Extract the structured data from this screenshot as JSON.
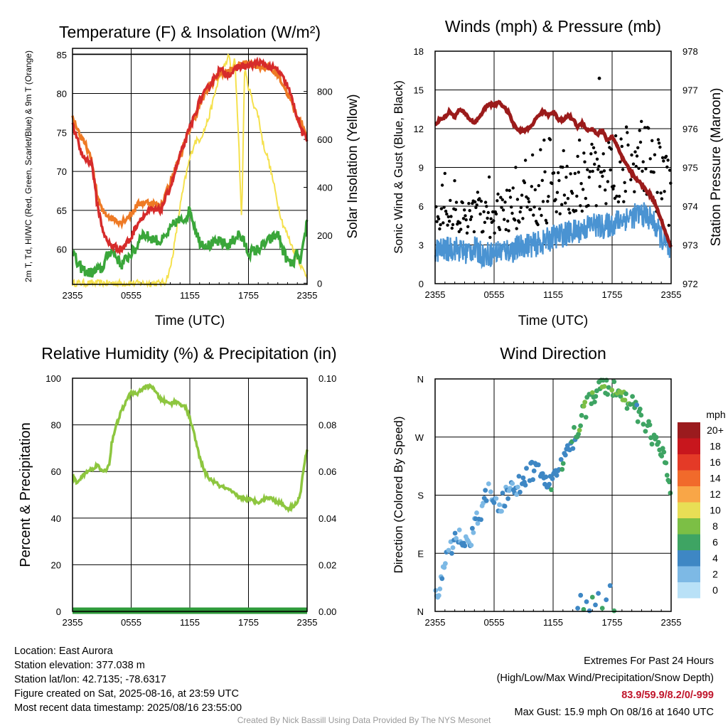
{
  "chart_data": [
    {
      "type": "line",
      "title": "Temperature (F) & Insolation (W/m²)",
      "xlabel": "Time (UTC)",
      "ylabel_left": "2m T, Td, HI/WC (Red, Green, Scarlet/Blue) & 9m T (Orange)",
      "ylabel_right": "Solar Insolation (Yellow)",
      "x_ticks": [
        "2355",
        "0555",
        "1155",
        "1755",
        "2355"
      ],
      "y_left_ticks": [
        60,
        65,
        70,
        75,
        80,
        85
      ],
      "y_right_ticks": [
        0,
        200,
        400,
        600,
        800
      ],
      "ylim_left": [
        55.5,
        85.8
      ],
      "ylim_right": [
        -5,
        980
      ],
      "series": [
        {
          "axis": "left",
          "color": "#d62b2b",
          "x": [
            0,
            0.5,
            1,
            1.5,
            2,
            2.5,
            3,
            3.5,
            4,
            5,
            6,
            6.5,
            7,
            8,
            9,
            10,
            11,
            12,
            13,
            14,
            15,
            16,
            16.5,
            17,
            18,
            19,
            20,
            21,
            21.5,
            22,
            22.5,
            23,
            23.5,
            24
          ],
          "y": [
            76,
            74,
            72,
            71.5,
            71,
            66,
            63,
            61,
            60.5,
            60,
            61.5,
            63,
            64,
            65,
            65,
            68,
            72,
            75.5,
            79,
            81,
            83,
            82.5,
            82.8,
            83.5,
            83.5,
            84,
            83.5,
            83,
            82,
            81,
            79,
            77,
            75,
            74
          ]
        },
        {
          "axis": "left",
          "color": "#ee7a25",
          "x": [
            0,
            0.5,
            1,
            1.5,
            2,
            2.5,
            3,
            3.5,
            4,
            5,
            6,
            6.5,
            7,
            8,
            9,
            10,
            11,
            12,
            13,
            14,
            15,
            16,
            17,
            18,
            19,
            20,
            21,
            22,
            22.5,
            23,
            23.5,
            24
          ],
          "y": [
            77,
            75.5,
            74,
            73,
            71,
            67,
            65,
            64.5,
            64,
            63.5,
            64.5,
            65.5,
            66,
            66,
            65.5,
            68.5,
            72,
            75.5,
            78.5,
            81,
            82.5,
            82.8,
            83.5,
            84,
            83.5,
            83.3,
            82.5,
            80,
            78.5,
            77,
            76,
            74.5
          ]
        },
        {
          "axis": "left",
          "color": "#3aa63a",
          "x": [
            0,
            0.5,
            1,
            1.5,
            2,
            3,
            3.5,
            4,
            4.5,
            5,
            6,
            6.5,
            7,
            8,
            9,
            9.5,
            10,
            10.5,
            11,
            11.5,
            12,
            12.5,
            13,
            14,
            15,
            16,
            17,
            17.5,
            18,
            19,
            20,
            21,
            21.5,
            22,
            22.5,
            23,
            23.3,
            23.7,
            24
          ],
          "y": [
            60,
            58,
            57.5,
            57,
            57,
            57.5,
            59,
            60,
            59,
            58,
            59.5,
            60,
            62,
            61.5,
            61,
            61.5,
            62.5,
            63.5,
            63.5,
            64,
            65,
            63,
            61,
            60.5,
            61,
            60.5,
            62,
            61,
            59.5,
            60,
            61,
            62,
            60,
            58.5,
            58,
            59.5,
            58,
            61,
            64
          ]
        },
        {
          "axis": "right",
          "color": "#f5e14d",
          "x": [
            0,
            1,
            2,
            3,
            4,
            5,
            6,
            7,
            8,
            9,
            9.5,
            10,
            10.5,
            11,
            11.5,
            12,
            12.5,
            13,
            13.5,
            14,
            14.5,
            15,
            15.5,
            16,
            16.3,
            16.6,
            17,
            17.3,
            17.6,
            18,
            18.5,
            19,
            19.5,
            20,
            20.5,
            21,
            21.5,
            22,
            22.5,
            23,
            23.5,
            24
          ],
          "y": [
            0,
            0,
            0,
            0,
            0,
            0,
            0,
            0,
            0,
            0,
            5,
            60,
            180,
            320,
            430,
            520,
            590,
            600,
            640,
            700,
            780,
            860,
            900,
            950,
            880,
            940,
            600,
            250,
            890,
            820,
            750,
            700,
            580,
            520,
            430,
            330,
            250,
            200,
            150,
            110,
            60,
            30
          ]
        }
      ]
    },
    {
      "type": "scatter",
      "title": "Winds (mph) & Pressure (mb)",
      "xlabel": "Time (UTC)",
      "ylabel_left": "Sonic Wind & Gust (Blue, Black)",
      "ylabel_right": "Station Pressure (Maroon)",
      "x_ticks": [
        "2355",
        "0555",
        "1155",
        "1755",
        "2355"
      ],
      "y_left_ticks": [
        0,
        3,
        6,
        9,
        12,
        15,
        18
      ],
      "y_right_ticks": [
        972,
        973,
        974,
        975,
        976,
        977,
        978
      ],
      "ylim_left": [
        0,
        18
      ],
      "ylim_right": [
        972,
        978
      ],
      "wind_mean": {
        "color": "#4a93d2",
        "x": [
          0,
          1,
          2,
          3,
          4,
          5,
          6,
          7,
          8,
          9,
          10,
          11,
          12,
          13,
          14,
          15,
          16,
          17,
          18,
          19,
          20,
          21,
          22,
          23,
          24
        ],
        "y": [
          2.6,
          2.6,
          2.8,
          2.4,
          2.7,
          2.2,
          2.4,
          2.6,
          2.6,
          3.0,
          3.0,
          3.2,
          3.6,
          3.8,
          4.0,
          4.2,
          4.6,
          4.4,
          4.6,
          5.0,
          5.2,
          5.4,
          5.0,
          3.6,
          2.2
        ]
      },
      "gust_points": {
        "color": "#000000",
        "max": 15.9
      },
      "pressure": {
        "color": "#9b1b1b",
        "x": [
          0,
          0.5,
          1,
          1.5,
          2,
          2.5,
          3,
          3.5,
          4,
          4.5,
          5,
          5.5,
          6,
          6.5,
          7,
          7.5,
          8,
          8.5,
          9,
          9.5,
          10,
          10.5,
          11,
          11.5,
          12,
          12.5,
          13,
          13.5,
          14,
          14.5,
          15,
          15.5,
          16,
          16.5,
          17,
          17.5,
          18,
          18.5,
          19,
          19.5,
          20,
          20.5,
          21,
          21.5,
          22,
          22.5,
          23,
          23.5,
          24
        ],
        "y": [
          976.1,
          976.25,
          976.3,
          976.45,
          976.3,
          976.5,
          976.4,
          976.25,
          976.15,
          976.3,
          976.5,
          976.65,
          976.6,
          976.7,
          976.55,
          976.4,
          976.1,
          975.95,
          975.95,
          976.0,
          976.15,
          976.35,
          976.45,
          976.35,
          976.45,
          976.25,
          976.2,
          976.35,
          976.25,
          976.05,
          976.15,
          975.95,
          976.0,
          975.85,
          975.95,
          975.7,
          975.8,
          975.55,
          975.25,
          975.05,
          974.85,
          974.7,
          974.55,
          974.4,
          974.25,
          974.0,
          973.65,
          973.25,
          972.95
        ]
      }
    },
    {
      "type": "line",
      "title": "Relative Humidity (%) & Precipitation (in)",
      "ylabel_left": "Percent & Precipitation",
      "x_ticks": [
        "2355",
        "0555",
        "1155",
        "1755",
        "2355"
      ],
      "y_left_ticks": [
        0,
        20,
        40,
        60,
        80,
        100
      ],
      "y_right_ticks": [
        "0.00",
        "0.02",
        "0.04",
        "0.06",
        "0.08",
        "0.10"
      ],
      "ylim_left": [
        0,
        100
      ],
      "ylim_right": [
        0,
        0.1
      ],
      "series": [
        {
          "name": "RH",
          "axis": "left",
          "color": "#8dc63f",
          "x": [
            0,
            0.5,
            1,
            1.5,
            2,
            2.5,
            3,
            3.5,
            3.8,
            4,
            4.5,
            5,
            5.5,
            6,
            6.5,
            7,
            7.5,
            8,
            8.5,
            9,
            9.5,
            10,
            10.5,
            11,
            11.5,
            12,
            12.5,
            13,
            13.5,
            14,
            15,
            16,
            17,
            18,
            19,
            20,
            21,
            21.5,
            22,
            22.5,
            23,
            23.3,
            23.6,
            24
          ],
          "y": [
            58,
            55,
            58,
            60,
            61,
            63,
            60,
            61,
            64,
            72,
            80,
            86,
            90,
            94,
            93,
            95,
            96,
            97,
            94,
            91,
            90,
            89,
            90,
            89,
            88,
            83,
            75,
            66,
            60,
            57,
            54,
            52,
            49,
            48,
            47,
            49,
            47,
            46,
            44,
            45,
            47,
            50,
            60,
            70
          ]
        },
        {
          "name": "Precip",
          "axis": "right",
          "color": "#2e9a3a",
          "x": [
            0,
            24
          ],
          "y": [
            0,
            0
          ]
        }
      ]
    },
    {
      "type": "scatter",
      "title": "Wind Direction",
      "ylabel_left": "Direction (Colored By Speed)",
      "x_ticks": [
        "2355",
        "0555",
        "1155",
        "1755",
        "2355"
      ],
      "y_ticks": [
        "N",
        "E",
        "S",
        "W",
        "N"
      ],
      "ylim": [
        0,
        360
      ],
      "legend": {
        "title": "mph",
        "labels": [
          "20+",
          "18",
          "16",
          "14",
          "12",
          "10",
          "8",
          "6",
          "4",
          "2",
          "0"
        ],
        "colors": [
          "#9b1b1e",
          "#c8161d",
          "#e43a27",
          "#f16a2b",
          "#f9a647",
          "#e8de55",
          "#7cbf45",
          "#3ea463",
          "#3e87c4",
          "#7db9e5",
          "#b9e1f7"
        ]
      },
      "direction_trend": {
        "x": [
          0,
          0.5,
          1,
          1.5,
          2,
          2.5,
          3,
          3.5,
          4,
          4.5,
          5,
          5.5,
          6,
          6.5,
          7,
          7.5,
          8,
          8.5,
          9,
          9.5,
          10,
          10.5,
          11,
          11.5,
          12,
          12.5,
          13,
          13.5,
          14,
          14.5,
          15,
          15.5,
          16,
          16.5,
          17,
          17.5,
          18,
          18.5,
          19,
          19.5,
          20,
          20.5,
          21,
          21.5,
          22,
          22.5,
          23,
          23.5,
          24
        ],
        "y": [
          20,
          45,
          70,
          95,
          110,
          115,
          112,
          105,
          130,
          150,
          170,
          185,
          165,
          160,
          175,
          185,
          190,
          195,
          205,
          210,
          220,
          215,
          210,
          205,
          200,
          215,
          230,
          250,
          265,
          285,
          305,
          320,
          335,
          342,
          348,
          350,
          345,
          340,
          335,
          325,
          320,
          310,
          300,
          290,
          275,
          260,
          245,
          220,
          190
        ]
      },
      "calm_cluster": {
        "x": [
          14.5,
          14.8,
          15.1,
          15.4,
          15.7,
          16,
          16.3,
          16.6,
          17,
          17.4,
          17.8,
          18.2
        ],
        "y": [
          5,
          25,
          3,
          15,
          1,
          22,
          10,
          28,
          5,
          18,
          40,
          1
        ]
      }
    }
  ],
  "info": {
    "location": "Location: East Aurora",
    "elevation": "Station elevation: 377.038 m",
    "latlon": "Station lat/lon: 42.7135; -78.6317",
    "created": "Figure created on Sat, 2025-08-16, at 23:59 UTC",
    "recent": "Most recent data timestamp: 2025/08/16 23:55:00"
  },
  "extremes": {
    "title": "Extremes For Past 24 Hours",
    "subtitle": "(High/Low/Max Wind/Precipitation/Snow Depth)",
    "values": "83.9/59.9/8.2/0/-999",
    "max_gust": "Max Gust: 15.9 mph On 08/16 at 1640 UTC"
  },
  "credit": "Created By Nick Bassill Using Data Provided By The NYS Mesonet"
}
